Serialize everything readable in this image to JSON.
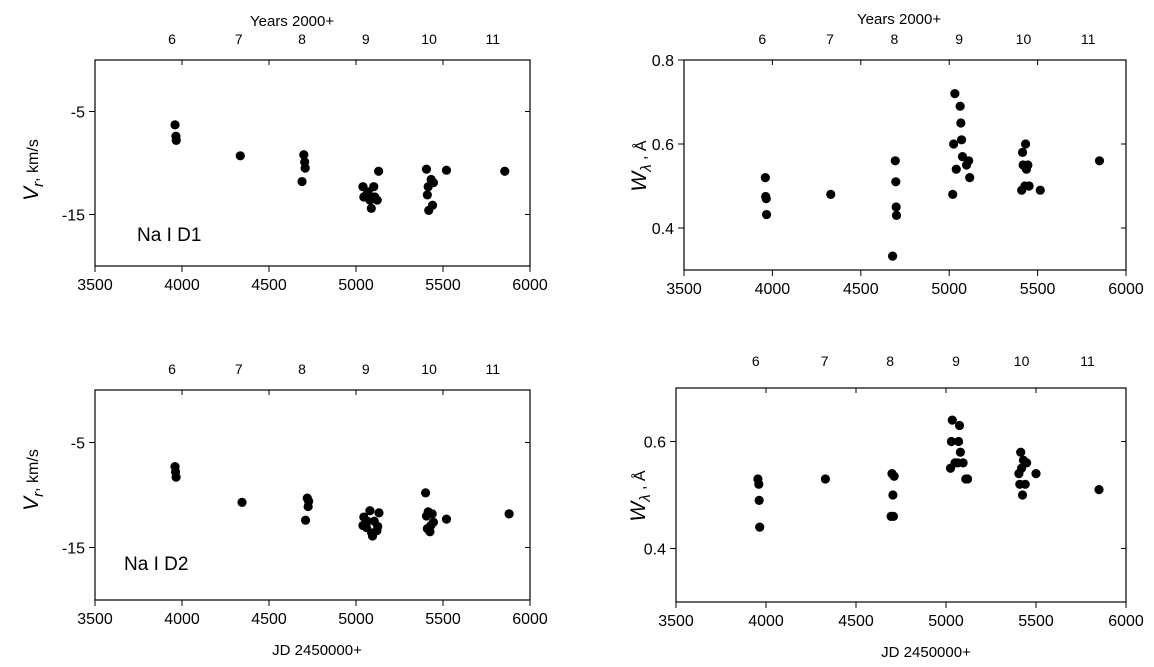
{
  "figure": {
    "bottom_xlabel": "JD 2450000+",
    "top_xlabel": "Years 2000+"
  },
  "chart_data": [
    {
      "type": "scatter",
      "annotation": "Na I D1",
      "xlabel": "",
      "top_xlabel": "Years 2000+",
      "ylabel": {
        "symbol": "V",
        "subscript": "r",
        "unit": ", km/s"
      },
      "xlim": [
        3500,
        6000
      ],
      "ylim": [
        -20,
        0
      ],
      "xticks": [
        3500,
        4000,
        4500,
        5000,
        5500,
        6000
      ],
      "yticks": [
        -5,
        -15
      ],
      "top_ticks": [
        {
          "label": "6",
          "jd": 3943
        },
        {
          "label": "7",
          "jd": 4326
        },
        {
          "label": "8",
          "jd": 4690
        },
        {
          "label": "9",
          "jd": 5056
        },
        {
          "label": "10",
          "jd": 5420
        },
        {
          "label": "11",
          "jd": 5786
        }
      ],
      "points": [
        {
          "x": 3960,
          "y": -6.3
        },
        {
          "x": 3965,
          "y": -7.4
        },
        {
          "x": 3967,
          "y": -7.8
        },
        {
          "x": 4335,
          "y": -9.3
        },
        {
          "x": 4690,
          "y": -11.8
        },
        {
          "x": 4700,
          "y": -9.2
        },
        {
          "x": 4705,
          "y": -9.9
        },
        {
          "x": 4708,
          "y": -10.5
        },
        {
          "x": 5040,
          "y": -12.3
        },
        {
          "x": 5045,
          "y": -13.3
        },
        {
          "x": 5060,
          "y": -13.1
        },
        {
          "x": 5070,
          "y": -12.8
        },
        {
          "x": 5080,
          "y": -13.6
        },
        {
          "x": 5088,
          "y": -14.4
        },
        {
          "x": 5102,
          "y": -12.3
        },
        {
          "x": 5108,
          "y": -13.3
        },
        {
          "x": 5122,
          "y": -13.6
        },
        {
          "x": 5130,
          "y": -10.8
        },
        {
          "x": 5405,
          "y": -10.6
        },
        {
          "x": 5410,
          "y": -13.1
        },
        {
          "x": 5415,
          "y": -12.3
        },
        {
          "x": 5418,
          "y": -14.6
        },
        {
          "x": 5432,
          "y": -11.6
        },
        {
          "x": 5440,
          "y": -14.1
        },
        {
          "x": 5445,
          "y": -11.9
        },
        {
          "x": 5520,
          "y": -10.7
        },
        {
          "x": 5855,
          "y": -10.8
        }
      ]
    },
    {
      "type": "scatter",
      "annotation": "",
      "xlabel": "",
      "top_xlabel": "Years 2000+",
      "ylabel": {
        "symbol": "W",
        "subscript": "λ",
        "unit": " , Å"
      },
      "xlim": [
        3500,
        6000
      ],
      "ylim": [
        0.3,
        0.8
      ],
      "xticks": [
        3500,
        4000,
        4500,
        5000,
        5500,
        6000
      ],
      "yticks": [
        0.4,
        0.6,
        0.8
      ],
      "top_ticks": [
        {
          "label": "6",
          "jd": 3943
        },
        {
          "label": "7",
          "jd": 4326
        },
        {
          "label": "8",
          "jd": 4690
        },
        {
          "label": "9",
          "jd": 5056
        },
        {
          "label": "10",
          "jd": 5420
        },
        {
          "label": "11",
          "jd": 5786
        }
      ],
      "points": [
        {
          "x": 3960,
          "y": 0.52
        },
        {
          "x": 3962,
          "y": 0.475
        },
        {
          "x": 3965,
          "y": 0.47
        },
        {
          "x": 3967,
          "y": 0.432
        },
        {
          "x": 4330,
          "y": 0.48
        },
        {
          "x": 4680,
          "y": 0.333
        },
        {
          "x": 4695,
          "y": 0.56
        },
        {
          "x": 4698,
          "y": 0.51
        },
        {
          "x": 4700,
          "y": 0.45
        },
        {
          "x": 4702,
          "y": 0.43
        },
        {
          "x": 5020,
          "y": 0.48
        },
        {
          "x": 5025,
          "y": 0.6
        },
        {
          "x": 5032,
          "y": 0.72
        },
        {
          "x": 5040,
          "y": 0.54
        },
        {
          "x": 5062,
          "y": 0.69
        },
        {
          "x": 5066,
          "y": 0.65
        },
        {
          "x": 5070,
          "y": 0.61
        },
        {
          "x": 5075,
          "y": 0.57
        },
        {
          "x": 5098,
          "y": 0.55
        },
        {
          "x": 5110,
          "y": 0.56
        },
        {
          "x": 5116,
          "y": 0.52
        },
        {
          "x": 5410,
          "y": 0.49
        },
        {
          "x": 5415,
          "y": 0.58
        },
        {
          "x": 5418,
          "y": 0.55
        },
        {
          "x": 5428,
          "y": 0.5
        },
        {
          "x": 5432,
          "y": 0.6
        },
        {
          "x": 5437,
          "y": 0.54
        },
        {
          "x": 5445,
          "y": 0.55
        },
        {
          "x": 5452,
          "y": 0.5
        },
        {
          "x": 5515,
          "y": 0.49
        },
        {
          "x": 5850,
          "y": 0.56
        }
      ]
    },
    {
      "type": "scatter",
      "annotation": "Na I D2",
      "xlabel": "JD 2450000+",
      "top_xlabel": "",
      "ylabel": {
        "symbol": "V",
        "subscript": "r",
        "unit": ", km/s"
      },
      "xlim": [
        3500,
        6000
      ],
      "ylim": [
        -20,
        0
      ],
      "xticks": [
        3500,
        4000,
        4500,
        5000,
        5500,
        6000
      ],
      "yticks": [
        -5,
        -15
      ],
      "top_ticks": [
        {
          "label": "6",
          "jd": 3943
        },
        {
          "label": "7",
          "jd": 4326
        },
        {
          "label": "8",
          "jd": 4690
        },
        {
          "label": "9",
          "jd": 5056
        },
        {
          "label": "10",
          "jd": 5420
        },
        {
          "label": "11",
          "jd": 5786
        }
      ],
      "points": [
        {
          "x": 3960,
          "y": -7.3
        },
        {
          "x": 3963,
          "y": -7.8
        },
        {
          "x": 3966,
          "y": -8.3
        },
        {
          "x": 4345,
          "y": -10.7
        },
        {
          "x": 4710,
          "y": -12.4
        },
        {
          "x": 4720,
          "y": -10.3
        },
        {
          "x": 4725,
          "y": -11.1
        },
        {
          "x": 4728,
          "y": -10.6
        },
        {
          "x": 5040,
          "y": -12.9
        },
        {
          "x": 5045,
          "y": -12.1
        },
        {
          "x": 5060,
          "y": -13.1
        },
        {
          "x": 5065,
          "y": -12.5
        },
        {
          "x": 5080,
          "y": -11.5
        },
        {
          "x": 5090,
          "y": -13.6
        },
        {
          "x": 5095,
          "y": -13.9
        },
        {
          "x": 5105,
          "y": -12.5
        },
        {
          "x": 5120,
          "y": -13.4
        },
        {
          "x": 5125,
          "y": -13.0
        },
        {
          "x": 5132,
          "y": -11.7
        },
        {
          "x": 5400,
          "y": -9.8
        },
        {
          "x": 5405,
          "y": -12.0
        },
        {
          "x": 5410,
          "y": -13.2
        },
        {
          "x": 5415,
          "y": -11.6
        },
        {
          "x": 5425,
          "y": -13.5
        },
        {
          "x": 5430,
          "y": -12.9
        },
        {
          "x": 5438,
          "y": -11.8
        },
        {
          "x": 5445,
          "y": -12.6
        },
        {
          "x": 5520,
          "y": -12.3
        },
        {
          "x": 5880,
          "y": -11.8
        }
      ]
    },
    {
      "type": "scatter",
      "annotation": "",
      "xlabel": "JD 2450000+",
      "top_xlabel": "",
      "ylabel": {
        "symbol": "W",
        "subscript": "λ",
        "unit": " , Å"
      },
      "xlim": [
        3500,
        6000
      ],
      "ylim": [
        0.3,
        0.7
      ],
      "xticks": [
        3500,
        4000,
        4500,
        5000,
        5500,
        6000
      ],
      "yticks": [
        0.4,
        0.6
      ],
      "top_ticks": [
        {
          "label": "6",
          "jd": 3943
        },
        {
          "label": "7",
          "jd": 4326
        },
        {
          "label": "8",
          "jd": 4690
        },
        {
          "label": "9",
          "jd": 5056
        },
        {
          "label": "10",
          "jd": 5420
        },
        {
          "label": "11",
          "jd": 5786
        }
      ],
      "points": [
        {
          "x": 3955,
          "y": 0.53
        },
        {
          "x": 3960,
          "y": 0.52
        },
        {
          "x": 3962,
          "y": 0.49
        },
        {
          "x": 3965,
          "y": 0.44
        },
        {
          "x": 4330,
          "y": 0.53
        },
        {
          "x": 4695,
          "y": 0.46
        },
        {
          "x": 4700,
          "y": 0.54
        },
        {
          "x": 4705,
          "y": 0.5
        },
        {
          "x": 4708,
          "y": 0.46
        },
        {
          "x": 4712,
          "y": 0.535
        },
        {
          "x": 5025,
          "y": 0.55
        },
        {
          "x": 5030,
          "y": 0.6
        },
        {
          "x": 5035,
          "y": 0.64
        },
        {
          "x": 5050,
          "y": 0.56
        },
        {
          "x": 5065,
          "y": 0.56
        },
        {
          "x": 5070,
          "y": 0.6
        },
        {
          "x": 5075,
          "y": 0.63
        },
        {
          "x": 5080,
          "y": 0.58
        },
        {
          "x": 5095,
          "y": 0.56
        },
        {
          "x": 5110,
          "y": 0.53
        },
        {
          "x": 5120,
          "y": 0.53
        },
        {
          "x": 5405,
          "y": 0.54
        },
        {
          "x": 5410,
          "y": 0.52
        },
        {
          "x": 5415,
          "y": 0.58
        },
        {
          "x": 5420,
          "y": 0.55
        },
        {
          "x": 5425,
          "y": 0.5
        },
        {
          "x": 5430,
          "y": 0.565
        },
        {
          "x": 5440,
          "y": 0.52
        },
        {
          "x": 5448,
          "y": 0.56
        },
        {
          "x": 5500,
          "y": 0.54
        },
        {
          "x": 5850,
          "y": 0.51
        }
      ]
    }
  ]
}
